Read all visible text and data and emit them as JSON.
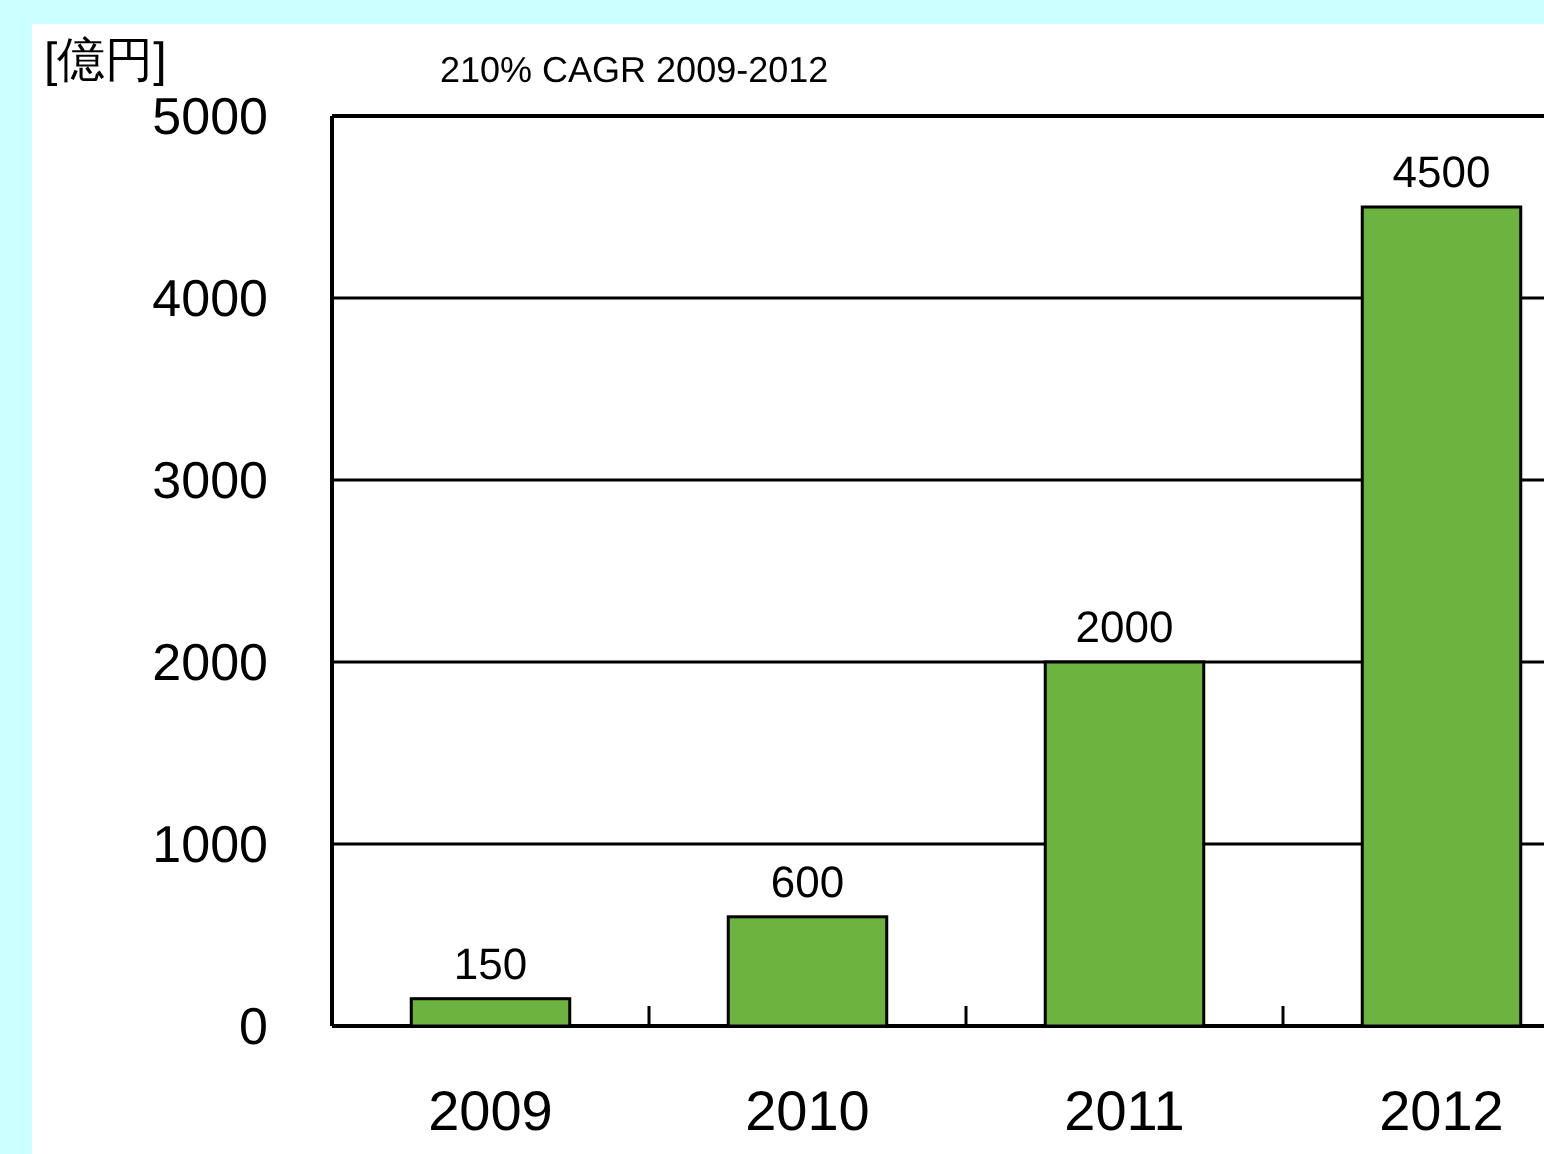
{
  "chart_data": {
    "type": "bar",
    "title": "210% CAGR 2009-2012",
    "ylabel": "[億円]",
    "categories": [
      "2009",
      "2010",
      "2011",
      "2012"
    ],
    "values": [
      150,
      600,
      2000,
      4500
    ],
    "color": "#6cb33f",
    "ylim": [
      0,
      5000
    ],
    "yticks": [
      0,
      1000,
      2000,
      3000,
      4000,
      5000
    ],
    "grid": "y",
    "data_labels": true
  }
}
